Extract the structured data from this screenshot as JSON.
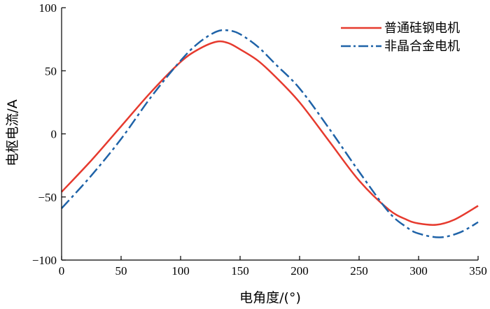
{
  "chart_data": {
    "type": "line",
    "title": "",
    "xlabel": "电角度/(°)",
    "ylabel": "电枢电流/A",
    "xlim": [
      0,
      350
    ],
    "ylim": [
      -100,
      100
    ],
    "xticks": [
      0,
      50,
      100,
      150,
      200,
      250,
      300,
      350
    ],
    "yticks": [
      100,
      50,
      0,
      -50,
      -100
    ],
    "xtick_labels": [
      "0",
      "50",
      "100",
      "150",
      "200",
      "250",
      "300",
      "350"
    ],
    "ytick_labels": [
      "100",
      "50",
      "0",
      "−50",
      "−100"
    ],
    "grid": false,
    "legend_position": "top-right",
    "series": [
      {
        "name": "普通硅钢电机",
        "color": "#e63a2e",
        "line_style": "solid",
        "x": [
          0,
          25,
          50,
          75,
          100,
          115,
          130,
          140,
          150,
          165,
          180,
          200,
          225,
          250,
          275,
          290,
          300,
          315,
          330,
          350
        ],
        "y": [
          -46,
          -21,
          6,
          33,
          57,
          67,
          73,
          72,
          67,
          58,
          45,
          25,
          -6,
          -37,
          -60,
          -68,
          -71,
          -72,
          -68,
          -57
        ]
      },
      {
        "name": "非晶合金电机",
        "color": "#1f63a8",
        "line_style": "dashdot",
        "x": [
          0,
          25,
          50,
          75,
          100,
          115,
          130,
          140,
          150,
          165,
          180,
          200,
          225,
          250,
          275,
          290,
          300,
          318,
          335,
          350
        ],
        "y": [
          -59,
          -33,
          -4,
          29,
          58,
          72,
          81,
          82,
          79,
          69,
          55,
          36,
          4,
          -30,
          -62,
          -74,
          -79,
          -82,
          -78,
          -70
        ]
      }
    ]
  }
}
